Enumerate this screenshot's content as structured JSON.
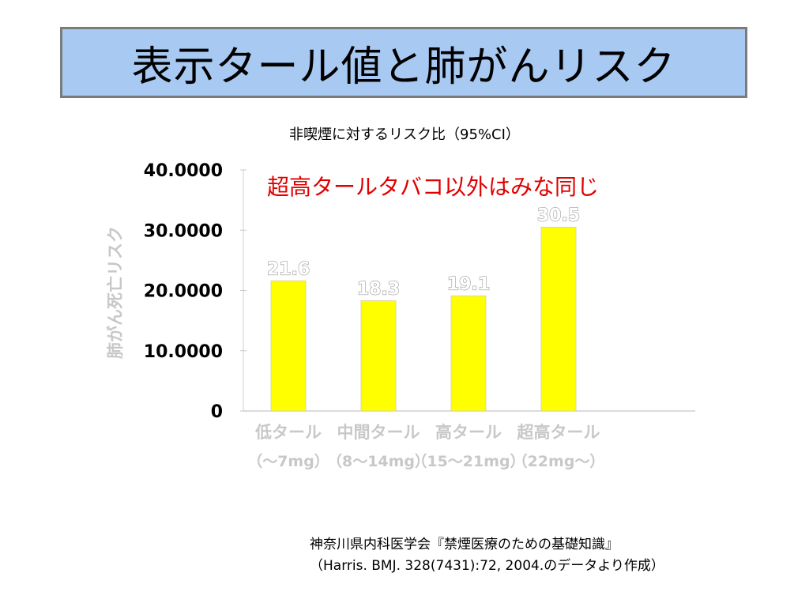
{
  "title": "表示タール値と肺がんリスク",
  "subtitle": "非喫煙に対するリスク比（95%CI）",
  "footer": {
    "line1": "神奈川県内科医学会『禁煙医療のための基礎知識』",
    "line2": "（Harris. BMJ. 328(7431):72, 2004.のデータより作成）"
  },
  "colors": {
    "title_bg": "#a7c9f2",
    "bar": "#ffff00",
    "annotation": "#e00000",
    "axis_label": "#c8c8c8"
  },
  "chart_data": {
    "type": "bar",
    "categories": [
      "低タール",
      "中間タール",
      "高タール",
      "超高タール"
    ],
    "category_sublabels": [
      "（〜7mg）",
      "（8〜14mg）",
      "（15〜21mg）",
      "（22mg〜）"
    ],
    "values": [
      21.6,
      18.3,
      19.1,
      30.5
    ],
    "data_labels": [
      "21.6",
      "18.3",
      "19.1",
      "30.5"
    ],
    "ylabel": "肺がん死亡リスク",
    "ylim": [
      0,
      40
    ],
    "yticks": [
      0,
      10,
      20,
      30,
      40
    ],
    "ytick_labels": [
      "0",
      "10.0000",
      "20.0000",
      "30.0000",
      "40.0000"
    ],
    "annotation": "超高タールタバコ以外はみな同じ",
    "grid": false
  }
}
